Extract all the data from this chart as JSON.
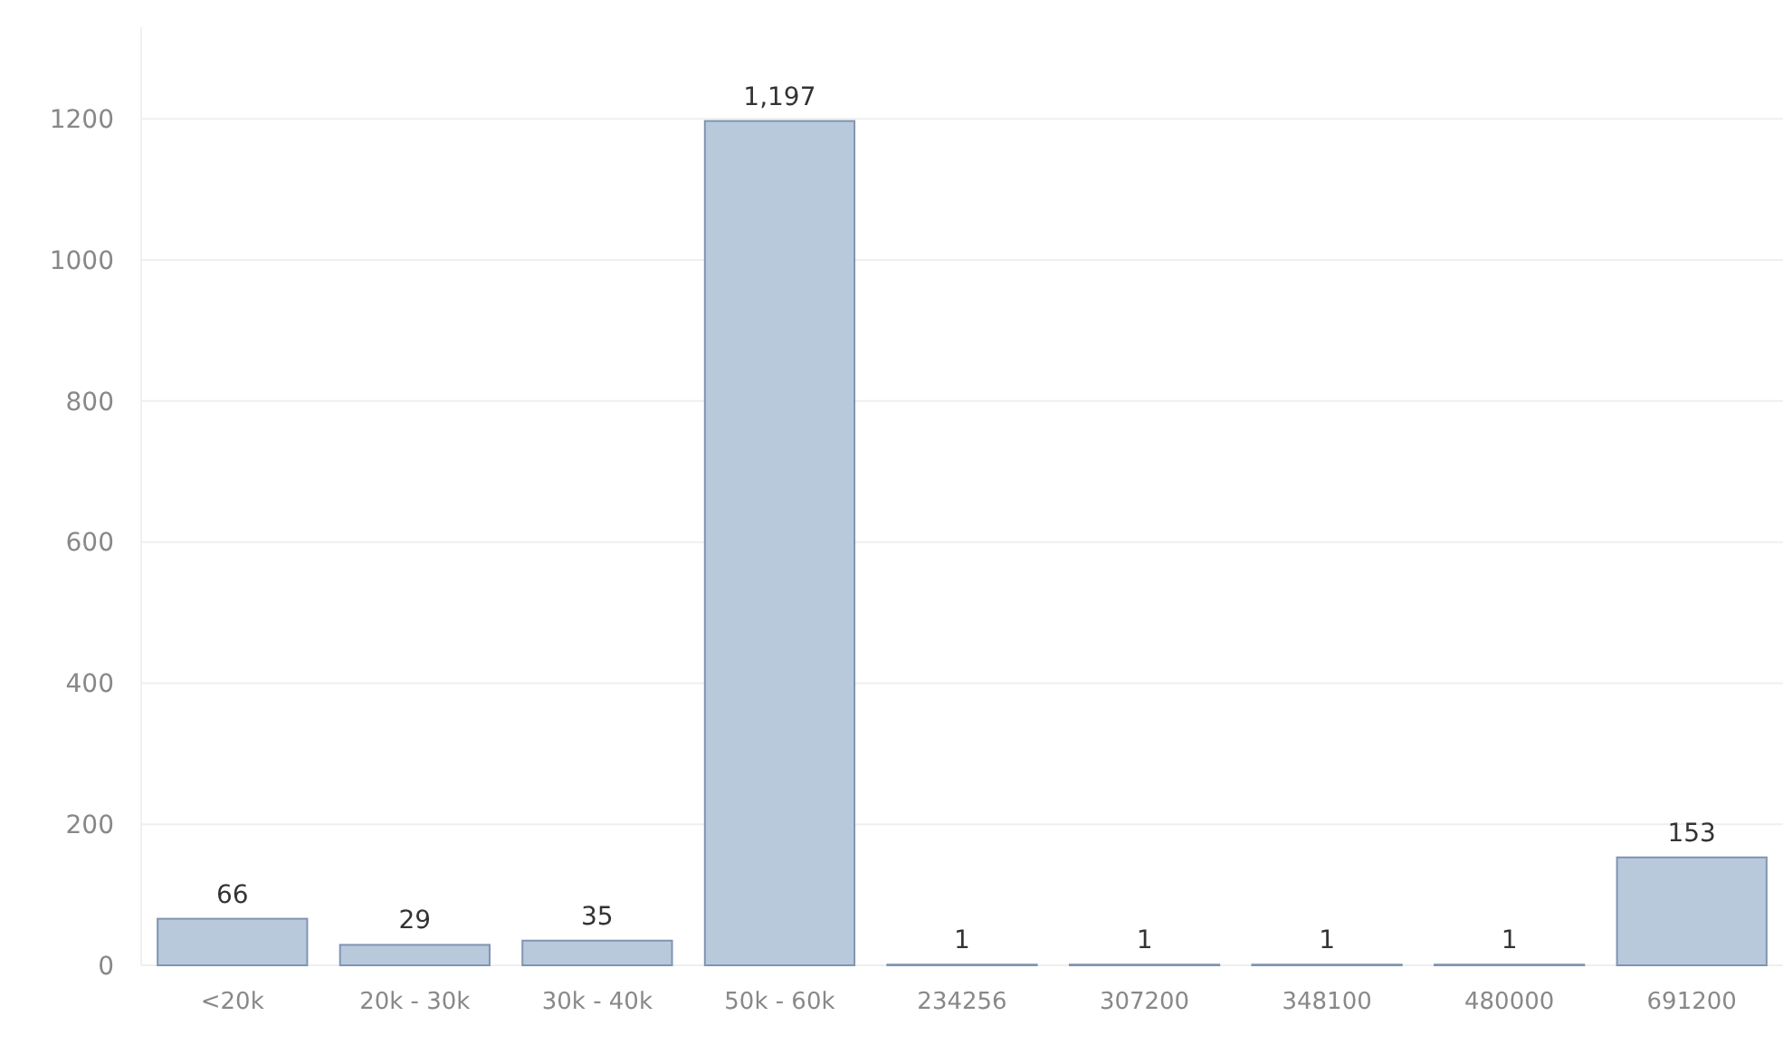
{
  "chart_data": {
    "type": "bar",
    "categories": [
      "<20k",
      "20k - 30k",
      "30k - 40k",
      "50k - 60k",
      "234256",
      "307200",
      "348100",
      "480000",
      "691200"
    ],
    "values": [
      66,
      29,
      35,
      1197,
      1,
      1,
      1,
      1,
      153
    ],
    "value_labels": [
      "66",
      "29",
      "35",
      "1,197",
      "1",
      "1",
      "1",
      "1",
      "153"
    ],
    "color": "#b9c9dc",
    "ylim": [
      0,
      1330
    ],
    "yticks": [
      0,
      200,
      400,
      600,
      800,
      1000,
      1200
    ],
    "grid": "y"
  }
}
